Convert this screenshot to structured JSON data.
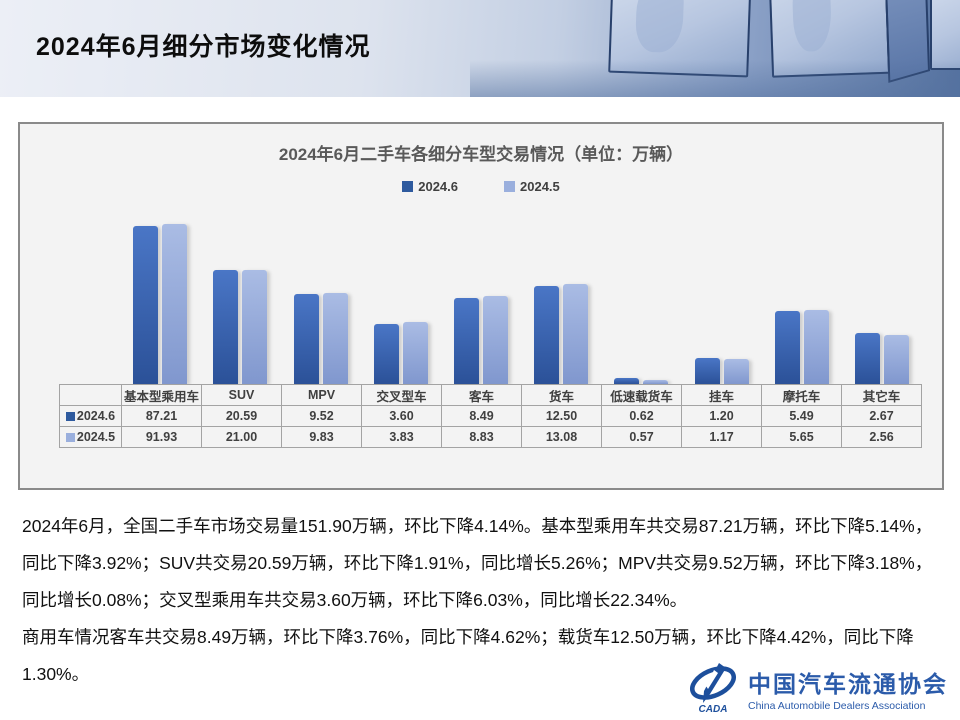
{
  "header": {
    "title": "2024年6月细分市场变化情况"
  },
  "chart": {
    "title": "2024年6月二手车各细分车型交易情况（单位：万辆）"
  },
  "chart_data": {
    "type": "bar",
    "title": "2024年6月二手车各细分车型交易情况（单位：万辆）",
    "unit": "万辆",
    "categories": [
      "基本型乘用车",
      "SUV",
      "MPV",
      "交叉型车",
      "客车",
      "货车",
      "低速载货车",
      "挂车",
      "摩托车",
      "其它车"
    ],
    "series": [
      {
        "name": "2024.6",
        "color": "#2e5a9e",
        "values": [
          87.21,
          20.59,
          9.52,
          3.6,
          8.49,
          12.5,
          0.62,
          1.2,
          5.49,
          2.67
        ]
      },
      {
        "name": "2024.5",
        "color": "#9aafdd",
        "values": [
          91.93,
          21.0,
          9.83,
          3.83,
          8.83,
          13.08,
          0.57,
          1.17,
          5.65,
          2.56
        ]
      }
    ],
    "scale": "log",
    "legend_position": "top",
    "grid": false,
    "data_table_shown": true
  },
  "body": {
    "paragraphs": [
      "2024年6月，全国二手车市场交易量151.90万辆，环比下降4.14%。基本型乘用车共交易87.21万辆，环比下降5.14%，同比下降3.92%；SUV共交易20.59万辆，环比下降1.91%，同比增长5.26%；MPV共交易9.52万辆，环比下降3.18%，同比增长0.08%；交叉型乘用车共交易3.60万辆，环比下降6.03%，同比增长22.34%。",
      "商用车情况客车共交易8.49万辆，环比下降3.76%，同比下降4.62%；载货车12.50万辆，环比下降4.42%，同比下降1.30%。"
    ]
  },
  "footer": {
    "logo_cn": "中国汽车流通协会",
    "logo_en": "China Automobile Dealers Association",
    "logo_mark": "CADA"
  },
  "colors": {
    "series_dark_top": "#4a76c6",
    "series_dark_bottom": "#2b5198",
    "series_light_top": "#aabce4",
    "series_light_bottom": "#8097ce",
    "card_background": "#f3f3f3",
    "card_border": "#8a8a8a",
    "table_border": "#a3a3a3",
    "chart_title_color": "#595959",
    "logo_blue": "#2b5baa"
  }
}
